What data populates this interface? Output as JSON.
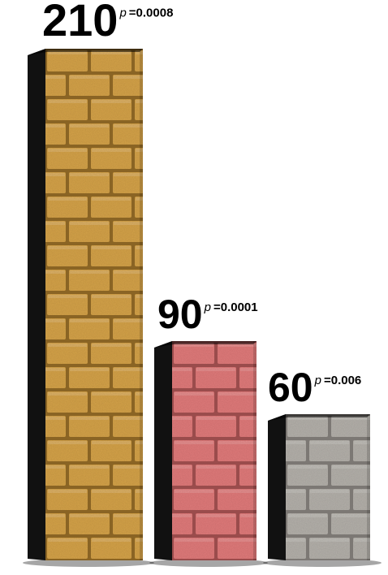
{
  "chart_data": {
    "type": "bar",
    "categories": [
      "",
      "",
      ""
    ],
    "values": [
      210,
      90,
      60
    ],
    "data_labels": [
      "210",
      "90",
      "60"
    ],
    "p_prefix": "p",
    "p_values": [
      "=0.0008",
      "=0.0001",
      "=0.006"
    ],
    "colors": [
      "#d4a24a",
      "#e07a7a",
      "#b4b0aa"
    ],
    "mortar_colors": [
      "#8a6424",
      "#9a4c4c",
      "#7c7874"
    ],
    "grid": false,
    "legend": "none"
  }
}
